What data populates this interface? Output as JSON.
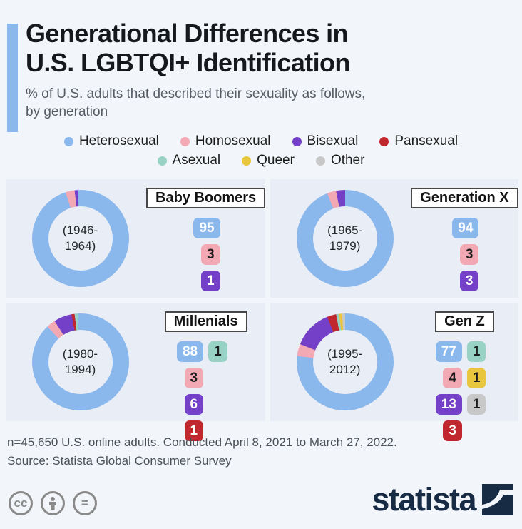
{
  "header": {
    "title_line1": "Generational Differences in",
    "title_line2": "U.S. LGBTQI+ Identification",
    "subtitle_line1": "% of U.S. adults that described their sexuality as follows,",
    "subtitle_line2": "by generation"
  },
  "colors": {
    "hetero": "#8ab7ec",
    "homo": "#f3a9b4",
    "bi": "#7540c8",
    "pan": "#c1272f",
    "ace": "#97d2c4",
    "queer": "#e8c63e",
    "other": "#c8c8c8"
  },
  "badge_text_colors": {
    "hetero": "#ffffff",
    "homo": "#1e1e1e",
    "bi": "#ffffff",
    "pan": "#ffffff",
    "ace": "#1e1e1e",
    "queer": "#1e1e1e",
    "other": "#1e1e1e"
  },
  "accent_color": "#8ab7ec",
  "brand_navy": "#182b45",
  "category_labels": {
    "hetero": "Heterosexual",
    "homo": "Homosexual",
    "bi": "Bisexual",
    "pan": "Pansexual",
    "ace": "Asexual",
    "queer": "Queer",
    "other": "Other"
  },
  "legend": {
    "rows": [
      [
        "hetero",
        "homo",
        "bi",
        "pan"
      ],
      [
        "ace",
        "queer",
        "other"
      ]
    ]
  },
  "panels": [
    {
      "id": "baby-boomers",
      "title": "Baby Boomers",
      "range_line1": "(1946-",
      "range_line2": "1964)",
      "slices": [
        {
          "key": "hetero",
          "value": 95
        },
        {
          "key": "homo",
          "value": 3
        },
        {
          "key": "bi",
          "value": 1
        }
      ],
      "badge_rows": [
        [
          {
            "key": "hetero",
            "value": "95"
          }
        ],
        [
          {
            "key": "homo",
            "value": "3"
          }
        ],
        [
          {
            "key": "bi",
            "value": "1"
          }
        ]
      ]
    },
    {
      "id": "generation-x",
      "title": "Generation X",
      "range_line1": "(1965-",
      "range_line2": "1979)",
      "slices": [
        {
          "key": "hetero",
          "value": 94
        },
        {
          "key": "homo",
          "value": 3
        },
        {
          "key": "bi",
          "value": 3
        }
      ],
      "badge_rows": [
        [
          {
            "key": "hetero",
            "value": "94"
          }
        ],
        [
          {
            "key": "homo",
            "value": "3"
          }
        ],
        [
          {
            "key": "bi",
            "value": "3"
          }
        ]
      ]
    },
    {
      "id": "millenials",
      "title": "Millenials",
      "range_line1": "(1980-",
      "range_line2": "1994)",
      "slices": [
        {
          "key": "hetero",
          "value": 88
        },
        {
          "key": "homo",
          "value": 3
        },
        {
          "key": "bi",
          "value": 6
        },
        {
          "key": "pan",
          "value": 1
        },
        {
          "key": "ace",
          "value": 1
        }
      ],
      "badge_rows": [
        [
          {
            "key": "hetero",
            "value": "88"
          },
          {
            "key": "ace",
            "value": "1"
          }
        ],
        [
          {
            "key": "homo",
            "value": "3"
          }
        ],
        [
          {
            "key": "bi",
            "value": "6"
          }
        ],
        [
          {
            "key": "pan",
            "value": "1"
          }
        ]
      ]
    },
    {
      "id": "gen-z",
      "title": "Gen Z",
      "range_line1": "(1995-",
      "range_line2": "2012)",
      "slices": [
        {
          "key": "hetero",
          "value": 77
        },
        {
          "key": "homo",
          "value": 4
        },
        {
          "key": "bi",
          "value": 13
        },
        {
          "key": "pan",
          "value": 3
        },
        {
          "key": "ace",
          "value": 1
        },
        {
          "key": "queer",
          "value": 1
        },
        {
          "key": "other",
          "value": 1
        }
      ],
      "badge_rows": [
        [
          {
            "key": "hetero",
            "value": "77"
          },
          {
            "key": "ace",
            "value": "1"
          }
        ],
        [
          {
            "key": "homo",
            "value": "4"
          },
          {
            "key": "queer",
            "value": "1"
          }
        ],
        [
          {
            "key": "bi",
            "value": "13"
          },
          {
            "key": "other",
            "value": "1"
          }
        ],
        [
          {
            "key": "pan",
            "value": "3"
          }
        ]
      ]
    }
  ],
  "chart_data": [
    {
      "type": "pie",
      "title": "Baby Boomers (1946-1964)",
      "labels": [
        "Heterosexual",
        "Homosexual",
        "Bisexual"
      ],
      "values": [
        95,
        3,
        1
      ],
      "unit": "%",
      "legend_position": "top"
    },
    {
      "type": "pie",
      "title": "Generation X (1965-1979)",
      "labels": [
        "Heterosexual",
        "Homosexual",
        "Bisexual"
      ],
      "values": [
        94,
        3,
        3
      ],
      "unit": "%",
      "legend_position": "top"
    },
    {
      "type": "pie",
      "title": "Millenials (1980-1994)",
      "labels": [
        "Heterosexual",
        "Homosexual",
        "Bisexual",
        "Pansexual",
        "Asexual"
      ],
      "values": [
        88,
        3,
        6,
        1,
        1
      ],
      "unit": "%",
      "legend_position": "top"
    },
    {
      "type": "pie",
      "title": "Gen Z (1995-2012)",
      "labels": [
        "Heterosexual",
        "Homosexual",
        "Bisexual",
        "Pansexual",
        "Asexual",
        "Queer",
        "Other"
      ],
      "values": [
        77,
        4,
        13,
        3,
        1,
        1,
        1
      ],
      "unit": "%",
      "legend_position": "top"
    }
  ],
  "footer": {
    "note": "n=45,650 U.S. online adults. Conducted April 8, 2021 to March 27, 2022.",
    "source": "Source: Statista Global Consumer Survey",
    "brand": "statista",
    "cc_glyph": "cc",
    "equals_glyph": "=",
    "license_icons": [
      "cc-icon",
      "attribution-icon",
      "equals-icon"
    ]
  }
}
